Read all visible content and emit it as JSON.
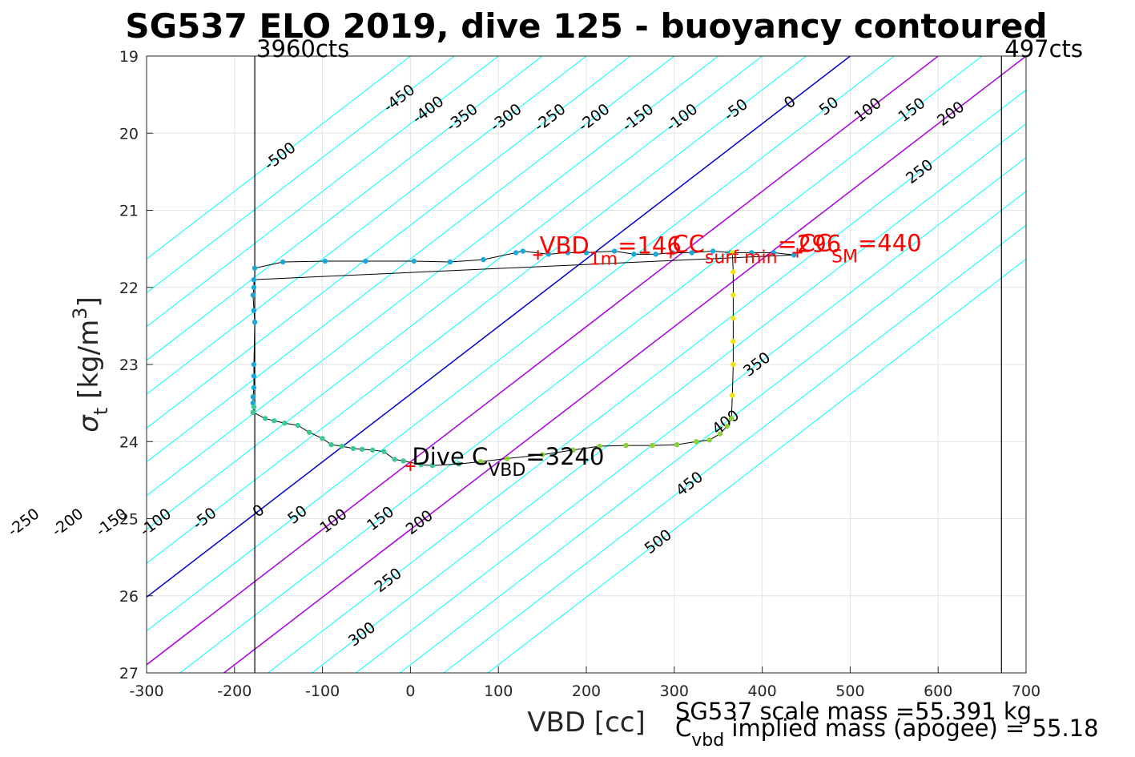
{
  "chart_data": {
    "type": "scatter",
    "title": "SG537 ELO 2019, dive 125 - buoyancy contoured",
    "xlabel": "VBD [cc]",
    "ylabel": "σ_t [kg/m^3]",
    "xlim": [
      -300,
      700
    ],
    "ylim": [
      19,
      27
    ],
    "y_reversed": true,
    "grid": true,
    "x_ticks": [
      "-300",
      "-200",
      "-100",
      "0",
      "100",
      "200",
      "300",
      "400",
      "500",
      "600",
      "700"
    ],
    "y_ticks": [
      "19",
      "20",
      "21",
      "22",
      "23",
      "24",
      "25",
      "26",
      "27"
    ],
    "vertical_limits": [
      {
        "x": -177,
        "label": "3960cts"
      },
      {
        "x": 672,
        "label": "497cts"
      }
    ],
    "contour_sigma_step_cc": 114,
    "contour_zero_vbd_at_sigma": [
      19,
      500
    ],
    "contours": [
      -500,
      -450,
      -400,
      -350,
      -300,
      -250,
      -200,
      -150,
      -100,
      -50,
      0,
      50,
      100,
      150,
      200,
      250,
      300,
      350,
      400,
      450,
      500
    ],
    "contour_colors": {
      "default": "#00ffff",
      "zero": "#0000cc",
      "band": "#aa00dd"
    },
    "band_contours": [
      100,
      200
    ],
    "contour_labels_top": [
      {
        "text": "-500",
        "value": -500,
        "sigma": 20.3
      },
      {
        "text": "-450",
        "value": -450,
        "sigma": 19.55
      },
      {
        "text": "-400",
        "value": -400,
        "sigma": 19.7
      },
      {
        "text": "-350",
        "value": -350,
        "sigma": 19.8
      },
      {
        "text": "-300",
        "value": -300,
        "sigma": 19.8
      },
      {
        "text": "-250",
        "value": -250,
        "sigma": 19.8
      },
      {
        "text": "-200",
        "value": -200,
        "sigma": 19.8
      },
      {
        "text": "-150",
        "value": -150,
        "sigma": 19.8
      },
      {
        "text": "-100",
        "value": -100,
        "sigma": 19.8
      },
      {
        "text": "-50",
        "value": -50,
        "sigma": 19.7
      },
      {
        "text": "0",
        "value": 0,
        "sigma": 19.6
      },
      {
        "text": "50",
        "value": 50,
        "sigma": 19.65
      },
      {
        "text": "100",
        "value": 100,
        "sigma": 19.7
      },
      {
        "text": "150",
        "value": 150,
        "sigma": 19.7
      },
      {
        "text": "200",
        "value": 200,
        "sigma": 19.75
      },
      {
        "text": "250",
        "value": 250,
        "sigma": 20.5
      }
    ],
    "contour_labels_bottom": [
      {
        "text": "-450",
        "value": -450,
        "sigma": 24.9
      },
      {
        "text": "-400",
        "value": -400,
        "sigma": 25.0
      },
      {
        "text": "-350",
        "value": -350,
        "sigma": 25.05
      },
      {
        "text": "-300",
        "value": -300,
        "sigma": 25.05
      },
      {
        "text": "-250",
        "value": -250,
        "sigma": 25.05
      },
      {
        "text": "-200",
        "value": -200,
        "sigma": 25.05
      },
      {
        "text": "-150",
        "value": -150,
        "sigma": 25.05
      },
      {
        "text": "-100",
        "value": -100,
        "sigma": 25.05
      },
      {
        "text": "-50",
        "value": -50,
        "sigma": 25.0
      },
      {
        "text": "0",
        "value": 0,
        "sigma": 24.9
      },
      {
        "text": "50",
        "value": 50,
        "sigma": 24.95
      },
      {
        "text": "100",
        "value": 100,
        "sigma": 25.03
      },
      {
        "text": "150",
        "value": 150,
        "sigma": 25.0
      },
      {
        "text": "200",
        "value": 200,
        "sigma": 25.05
      },
      {
        "text": "250",
        "value": 250,
        "sigma": 25.8
      },
      {
        "text": "300",
        "value": 300,
        "sigma": 26.5
      },
      {
        "text": "350",
        "value": 350,
        "sigma": 23.0
      },
      {
        "text": "400",
        "value": 400,
        "sigma": 23.75
      },
      {
        "text": "450",
        "value": 450,
        "sigma": 24.55
      },
      {
        "text": "500",
        "value": 500,
        "sigma": 25.3
      }
    ],
    "profile_points": [
      [
        -177,
        21.75
      ],
      [
        -145,
        21.67
      ],
      [
        -97,
        21.66
      ],
      [
        -51,
        21.66
      ],
      [
        4,
        21.66
      ],
      [
        45,
        21.67
      ],
      [
        83,
        21.64
      ],
      [
        120,
        21.55
      ],
      [
        128,
        21.53
      ],
      [
        157,
        21.57
      ],
      [
        179,
        21.55
      ],
      [
        200,
        21.55
      ],
      [
        232,
        21.53
      ],
      [
        254,
        21.57
      ],
      [
        279,
        21.57
      ],
      [
        298,
        21.55
      ],
      [
        320,
        21.55
      ],
      [
        344,
        21.53
      ],
      [
        364,
        21.55
      ],
      [
        388,
        21.55
      ],
      [
        413,
        21.55
      ],
      [
        436,
        21.58
      ],
      [
        -178,
        21.9
      ],
      [
        -178,
        22.0
      ],
      [
        -179,
        22.1
      ],
      [
        -178,
        22.3
      ],
      [
        -177,
        22.45
      ],
      [
        -178,
        23.0
      ],
      [
        -178,
        23.15
      ],
      [
        -178,
        23.3
      ],
      [
        -179,
        23.42
      ],
      [
        -179,
        23.5
      ],
      [
        -178,
        23.55
      ],
      [
        -179,
        23.62
      ],
      [
        -165,
        23.7
      ],
      [
        -155,
        23.73
      ],
      [
        -143,
        23.76
      ],
      [
        -128,
        23.79
      ],
      [
        -115,
        23.88
      ],
      [
        -100,
        23.96
      ],
      [
        -90,
        24.04
      ],
      [
        -78,
        24.06
      ],
      [
        -65,
        24.09
      ],
      [
        -55,
        24.1
      ],
      [
        -43,
        24.11
      ],
      [
        -30,
        24.13
      ],
      [
        -18,
        24.23
      ],
      [
        -8,
        24.25
      ],
      [
        12,
        24.3
      ],
      [
        25,
        24.31
      ],
      [
        55,
        24.29
      ],
      [
        80,
        24.26
      ],
      [
        110,
        24.22
      ],
      [
        150,
        24.17
      ],
      [
        185,
        24.11
      ],
      [
        215,
        24.06
      ],
      [
        245,
        24.05
      ],
      [
        275,
        24.05
      ],
      [
        303,
        24.04
      ],
      [
        325,
        24.0
      ],
      [
        340,
        23.98
      ],
      [
        352,
        23.9
      ],
      [
        360,
        23.8
      ],
      [
        365,
        23.7
      ],
      [
        366,
        23.4
      ],
      [
        367,
        23.0
      ],
      [
        367,
        22.7
      ],
      [
        367,
        22.4
      ],
      [
        367,
        22.1
      ],
      [
        367,
        21.8
      ],
      [
        366,
        21.55
      ]
    ],
    "points_colors": {
      "surface": "#1aa7dc",
      "mid": "#3cc891",
      "deep": "#8ad039",
      "apogee": "#f2e310"
    },
    "markers": [
      {
        "x": 145,
        "sigma": 21.58,
        "label": "VBD",
        "sub": "1m",
        "suffix": "=146",
        "color": "#ff0000"
      },
      {
        "x": 296,
        "sigma": 21.56,
        "label": "CC",
        "sub": "surf min",
        "suffix": "=296",
        "color": "#ff0000"
      },
      {
        "x": 440,
        "sigma": 21.55,
        "label": "CC",
        "sub": "SM",
        "suffix": "=440",
        "color": "#ff0000"
      },
      {
        "x": 0,
        "sigma": 24.32,
        "label": "Dive C",
        "sub": "VBD",
        "suffix": "=3240",
        "color": "#000000",
        "marker_color": "#ff0000"
      }
    ],
    "footer": {
      "line1": "SG537 scale mass =55.391 kg",
      "line2_prefix": "C",
      "line2_sub": "vbd",
      "line2_suffix": "implied mass (apogee) = 55.18"
    }
  }
}
